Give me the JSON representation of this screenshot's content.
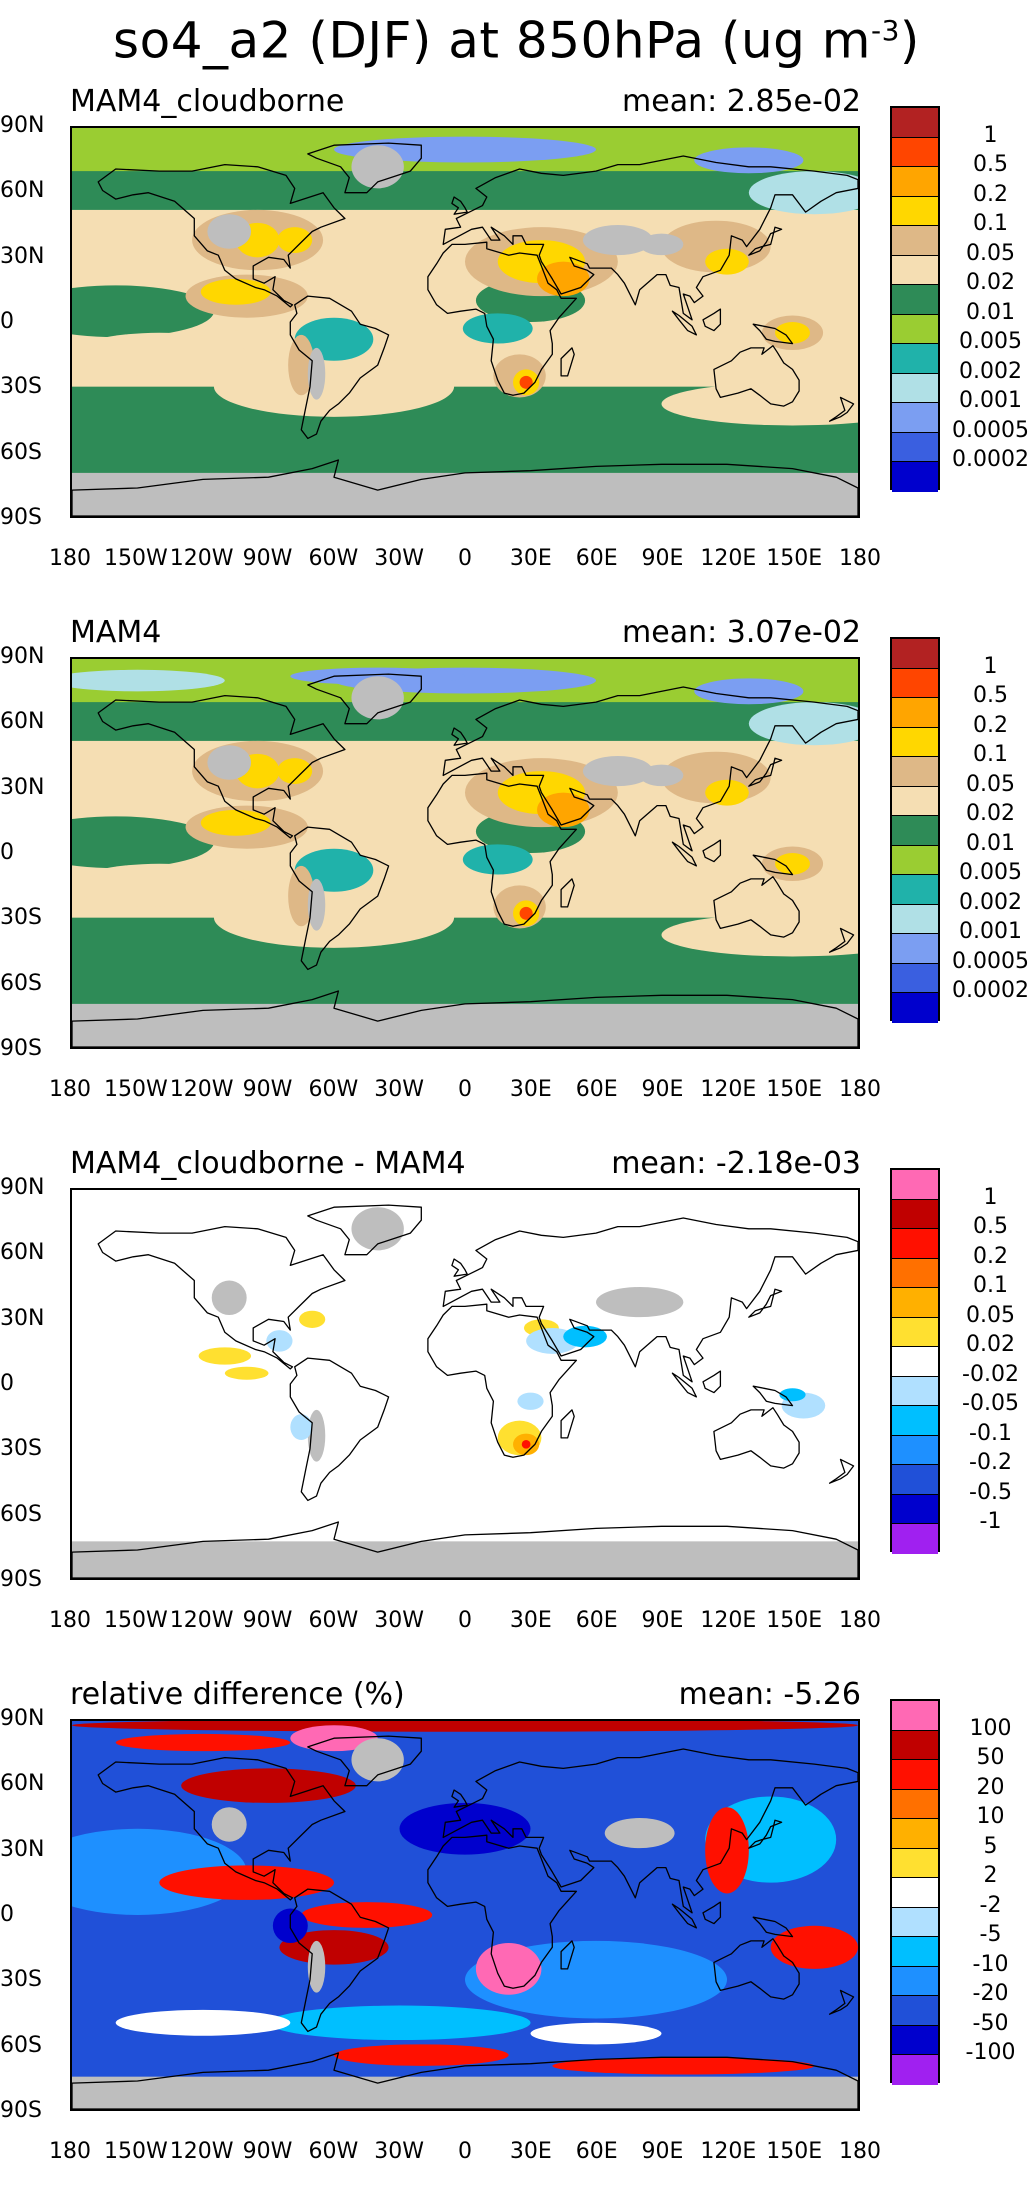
{
  "title_html": "so4_a2 (DJF) at 850hPa (ug m<sup>-3</sup>)",
  "title": {
    "text": "so4_a2 (DJF) at 850hPa (ug m",
    "exp": "-3",
    "close": ")"
  },
  "axes": {
    "y_ticks": [
      "90N",
      "60N",
      "30N",
      "0",
      "30S",
      "60S",
      "90S"
    ],
    "x_ticks": [
      "180",
      "150W",
      "120W",
      "90W",
      "60W",
      "30W",
      "0",
      "30E",
      "60E",
      "90E",
      "120E",
      "150E",
      "180"
    ]
  },
  "colors": {
    "land_missing": "#bebebe",
    "conc_scale": [
      "#0000cd",
      "#3a5fe0",
      "#7b9ef2",
      "#b0e0e6",
      "#20b2aa",
      "#9acd32",
      "#2e8b57",
      "#f5deb3",
      "#deb887",
      "#ffd700",
      "#ffa500",
      "#ff4500",
      "#b22222"
    ],
    "diff_scale": [
      "#a020f0",
      "#0000cd",
      "#2050d8",
      "#1e90ff",
      "#00bfff",
      "#b0e0ff",
      "#ffffff",
      "#ffe030",
      "#ffb000",
      "#ff7000",
      "#ff1000",
      "#c00000",
      "#ff69b4"
    ]
  },
  "panels": [
    {
      "id": "cloudborne",
      "left": "MAM4_cloudborne",
      "right": "mean: 2.85e-02",
      "type": "conc",
      "levels": [
        "1",
        "0.5",
        "0.2",
        "0.1",
        "0.05",
        "0.02",
        "0.01",
        "0.005",
        "0.002",
        "0.001",
        "0.0005",
        "0.0002"
      ]
    },
    {
      "id": "mam4",
      "left": "MAM4",
      "right": "mean: 3.07e-02",
      "type": "conc",
      "levels": [
        "1",
        "0.5",
        "0.2",
        "0.1",
        "0.05",
        "0.02",
        "0.01",
        "0.005",
        "0.002",
        "0.001",
        "0.0005",
        "0.0002"
      ]
    },
    {
      "id": "difference",
      "left": "MAM4_cloudborne - MAM4",
      "right": "mean: -2.18e-03",
      "type": "diff",
      "levels": [
        "1",
        "0.5",
        "0.2",
        "0.1",
        "0.05",
        "0.02",
        "-0.02",
        "-0.05",
        "-0.1",
        "-0.2",
        "-0.5",
        "-1"
      ]
    },
    {
      "id": "relative",
      "left": "relative difference (%)",
      "right": "mean: -5.26",
      "type": "rel",
      "levels": [
        "100",
        "50",
        "20",
        "10",
        "5",
        "2",
        "-2",
        "-5",
        "-10",
        "-20",
        "-50",
        "-100"
      ]
    }
  ]
}
